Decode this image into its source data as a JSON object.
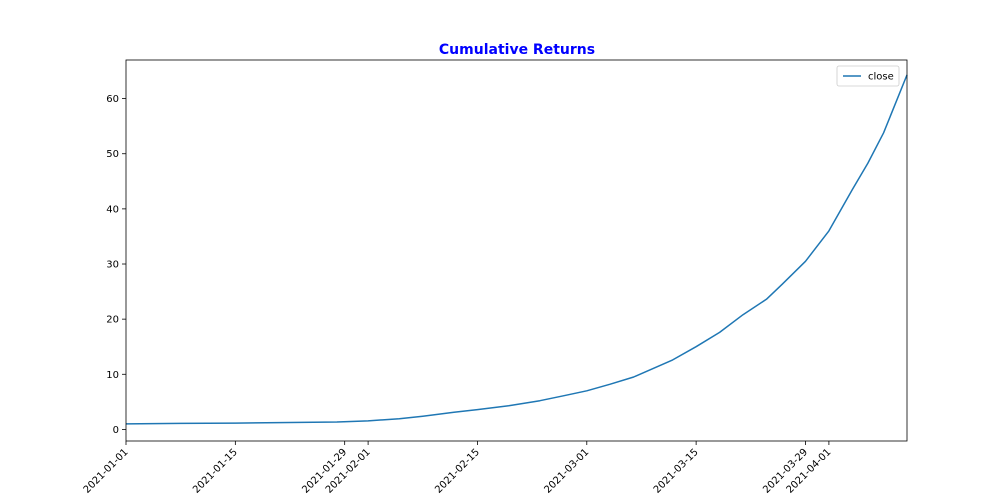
{
  "chart_data": {
    "type": "line",
    "title": "Cumulative Returns",
    "title_color": "#0000ff",
    "xlabel": "",
    "ylabel": "",
    "x_tick_labels": [
      "2021-01-01",
      "2021-01-15",
      "2021-01-29",
      "2021-02-01",
      "2021-02-15",
      "2021-03-01",
      "2021-03-15",
      "2021-03-29",
      "2021-04-01"
    ],
    "y_ticks": [
      0,
      10,
      20,
      30,
      40,
      50,
      60
    ],
    "xlim": [
      "2021-01-01",
      "2021-04-11"
    ],
    "ylim": [
      -2.1,
      67
    ],
    "grid": false,
    "legend_position": "upper-right",
    "series": [
      {
        "name": "close",
        "color": "#1f77b4",
        "points": [
          {
            "x": "2021-01-01",
            "y": 1.0
          },
          {
            "x": "2021-01-08",
            "y": 1.1
          },
          {
            "x": "2021-01-15",
            "y": 1.15
          },
          {
            "x": "2021-01-22",
            "y": 1.25
          },
          {
            "x": "2021-01-28",
            "y": 1.35
          },
          {
            "x": "2021-02-01",
            "y": 1.55
          },
          {
            "x": "2021-02-05",
            "y": 1.95
          },
          {
            "x": "2021-02-08",
            "y": 2.4
          },
          {
            "x": "2021-02-12",
            "y": 3.1
          },
          {
            "x": "2021-02-15",
            "y": 3.6
          },
          {
            "x": "2021-02-19",
            "y": 4.3
          },
          {
            "x": "2021-02-23",
            "y": 5.2
          },
          {
            "x": "2021-02-26",
            "y": 6.1
          },
          {
            "x": "2021-03-01",
            "y": 7.0
          },
          {
            "x": "2021-03-04",
            "y": 8.2
          },
          {
            "x": "2021-03-07",
            "y": 9.5
          },
          {
            "x": "2021-03-12",
            "y": 12.6
          },
          {
            "x": "2021-03-15",
            "y": 15.0
          },
          {
            "x": "2021-03-18",
            "y": 17.6
          },
          {
            "x": "2021-03-21",
            "y": 20.8
          },
          {
            "x": "2021-03-24",
            "y": 23.6
          },
          {
            "x": "2021-03-26",
            "y": 26.3
          },
          {
            "x": "2021-03-29",
            "y": 30.5
          },
          {
            "x": "2021-04-01",
            "y": 36.0
          },
          {
            "x": "2021-04-04",
            "y": 43.5
          },
          {
            "x": "2021-04-06",
            "y": 48.3
          },
          {
            "x": "2021-04-08",
            "y": 53.8
          },
          {
            "x": "2021-04-11",
            "y": 64.3
          }
        ]
      }
    ]
  }
}
